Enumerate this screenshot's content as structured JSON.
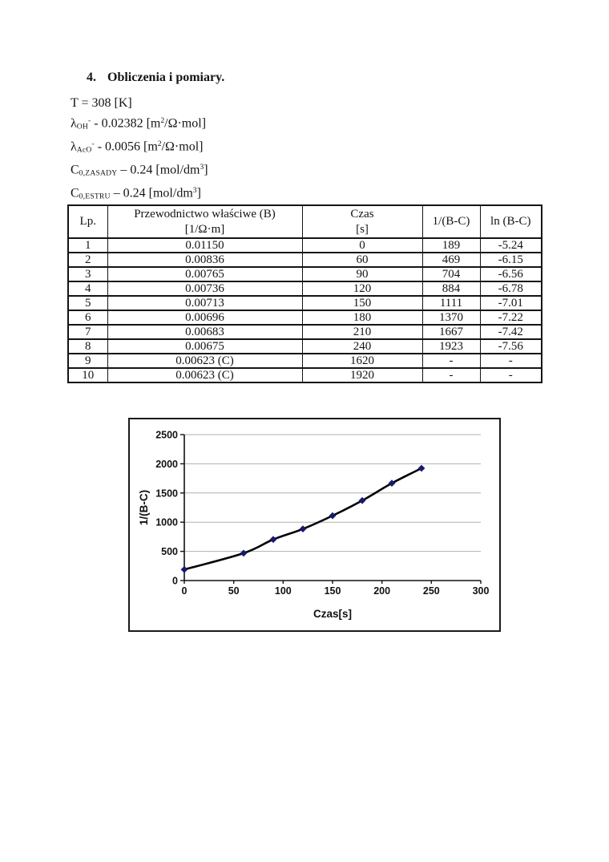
{
  "heading": {
    "number": "4.",
    "title": "Obliczenia i pomiary."
  },
  "constants": [
    [
      {
        "t": "T = 308 [K]"
      }
    ],
    [
      {
        "t": "λ"
      },
      {
        "t": "OH",
        "f": "sub"
      },
      {
        "t": "-",
        "f": "sup"
      },
      {
        "t": " - 0.02382 [m"
      },
      {
        "t": "2",
        "f": "sup"
      },
      {
        "t": "/Ω·mol]"
      }
    ],
    [
      {
        "t": "λ"
      },
      {
        "t": "AcO",
        "f": "sub"
      },
      {
        "t": "-",
        "f": "sup"
      },
      {
        "t": " - 0.0056 [m"
      },
      {
        "t": "2",
        "f": "sup"
      },
      {
        "t": "/Ω·mol]"
      }
    ],
    [
      {
        "t": "C"
      },
      {
        "t": "0,ZASADY",
        "f": "sub"
      },
      {
        "t": " – 0.24 [mol/dm"
      },
      {
        "t": "3",
        "f": "sup"
      },
      {
        "t": "]"
      }
    ],
    [
      {
        "t": "C"
      },
      {
        "t": "0,ESTRU",
        "f": "sub"
      },
      {
        "t": " – 0.24 [mol/dm"
      },
      {
        "t": "3",
        "f": "sup"
      },
      {
        "t": "]"
      }
    ]
  ],
  "table": {
    "headers": [
      {
        "line1": "Lp.",
        "line2": ""
      },
      {
        "line1": "Przewodnictwo właściwe (B)",
        "line2": "[1/Ω·m]"
      },
      {
        "line1": "Czas",
        "line2": "[s]"
      },
      {
        "line1": "1/(B-C)",
        "line2": ""
      },
      {
        "line1": "ln (B-C)",
        "line2": ""
      }
    ],
    "rows": [
      [
        "1",
        "0.01150",
        "0",
        "189",
        "-5.24"
      ],
      [
        "2",
        "0.00836",
        "60",
        "469",
        "-6.15"
      ],
      [
        "3",
        "0.00765",
        "90",
        "704",
        "-6.56"
      ],
      [
        "4",
        "0.00736",
        "120",
        "884",
        "-6.78"
      ],
      [
        "5",
        "0.00713",
        "150",
        "1111",
        "-7.01"
      ],
      [
        "6",
        "0.00696",
        "180",
        "1370",
        "-7.22"
      ],
      [
        "7",
        "0.00683",
        "210",
        "1667",
        "-7.42"
      ],
      [
        "8",
        "0.00675",
        "240",
        "1923",
        "-7.56"
      ],
      [
        "9",
        "0.00623 (C)",
        "1620",
        "-",
        "-"
      ],
      [
        "10",
        "0.00623 (C)",
        "1920",
        "-",
        "-"
      ]
    ]
  },
  "chart_data": {
    "type": "line",
    "series_name": "1/(B-C)",
    "x": [
      0,
      60,
      90,
      120,
      150,
      180,
      210,
      240
    ],
    "y": [
      189,
      469,
      704,
      884,
      1111,
      1370,
      1667,
      1923
    ],
    "title": "",
    "xlabel": "Czas[s]",
    "ylabel": "1/(B-C)",
    "xlim": [
      0,
      300
    ],
    "ylim": [
      0,
      2500
    ],
    "xticks": [
      0,
      50,
      100,
      150,
      200,
      250,
      300
    ],
    "yticks": [
      0,
      500,
      1000,
      1500,
      2000,
      2500
    ],
    "grid": "horizontal-major",
    "legend": "none",
    "marker": "diamond",
    "smoothed": true,
    "line_color": "#000008",
    "marker_color": "#191970",
    "gridline_color": "#b0b0b0",
    "axis_color": "#111111"
  }
}
